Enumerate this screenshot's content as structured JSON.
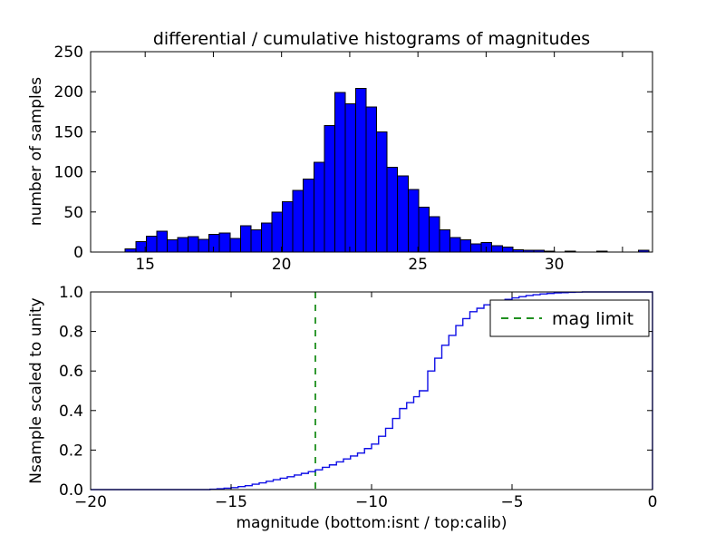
{
  "figure": {
    "background": "#ffffff",
    "suptitle": ""
  },
  "chart_data": [
    {
      "type": "bar",
      "role": "differential-histogram",
      "title": "differential / cumulative histograms of magnitudes",
      "ylabel": "number of samples",
      "xlabel": "",
      "xlim": [
        13.0,
        33.6
      ],
      "ylim": [
        0,
        250
      ],
      "xticks_labeled": [
        15,
        20,
        25,
        30
      ],
      "xtick_minor_start": 15,
      "xtick_minor_step": 2.5,
      "xtick_minor_end": 32.5,
      "yticks": [
        0,
        50,
        100,
        150,
        200,
        250
      ],
      "grid": false,
      "bar_fill": "#0000ff",
      "bar_edge": "#000000",
      "bin_start": 14.27,
      "bin_width": 0.384,
      "counts": [
        4,
        13,
        20,
        26,
        15,
        18,
        19,
        16,
        22,
        24,
        17,
        33,
        28,
        36,
        50,
        63,
        77,
        91,
        112,
        158,
        199,
        185,
        204,
        181,
        150,
        106,
        95,
        78,
        56,
        44,
        28,
        18,
        15,
        10,
        12,
        8,
        6,
        3,
        2,
        2,
        1,
        0,
        1,
        0,
        0,
        1,
        0,
        0,
        0,
        2
      ]
    },
    {
      "type": "line",
      "role": "cumulative-histogram-step",
      "title": "",
      "ylabel": "Nsample scaled to unity",
      "xlabel": "magnitude (bottom:isnt / top:calib)",
      "xlim": [
        -20,
        0
      ],
      "ylim": [
        0.0,
        1.0
      ],
      "xticks": [
        -20,
        -15,
        -10,
        -5,
        0
      ],
      "yticks": [
        0.0,
        0.2,
        0.4,
        0.6,
        0.8,
        1.0
      ],
      "grid": false,
      "line_color": "#0f0fe6",
      "step_resolution": 0.31,
      "step_points": [
        [
          -20,
          0.0
        ],
        [
          -16,
          0.0
        ],
        [
          -15.5,
          0.004
        ],
        [
          -15,
          0.01
        ],
        [
          -14.5,
          0.02
        ],
        [
          -14,
          0.034
        ],
        [
          -13.5,
          0.05
        ],
        [
          -13,
          0.065
        ],
        [
          -12.5,
          0.082
        ],
        [
          -12,
          0.1
        ],
        [
          -11.5,
          0.125
        ],
        [
          -11,
          0.155
        ],
        [
          -10.5,
          0.185
        ],
        [
          -10,
          0.23
        ],
        [
          -9.5,
          0.31
        ],
        [
          -9,
          0.41
        ],
        [
          -8.5,
          0.47
        ],
        [
          -8.3,
          0.5
        ],
        [
          -8,
          0.6
        ],
        [
          -7.5,
          0.73
        ],
        [
          -7,
          0.83
        ],
        [
          -6.5,
          0.9
        ],
        [
          -6,
          0.935
        ],
        [
          -5.5,
          0.955
        ],
        [
          -5,
          0.97
        ],
        [
          -4.5,
          0.982
        ],
        [
          -4,
          0.99
        ],
        [
          -3.5,
          0.995
        ],
        [
          -3,
          0.998
        ],
        [
          -2.5,
          1.0
        ],
        [
          0,
          1.0
        ]
      ],
      "closes_to_zero_at_right_edge": true,
      "mag_limit": {
        "x": -12,
        "label": "mag limit",
        "color": "#008000",
        "linestyle": "dashed"
      },
      "legend": {
        "position": "upper right",
        "entries": [
          "mag limit"
        ]
      }
    }
  ]
}
